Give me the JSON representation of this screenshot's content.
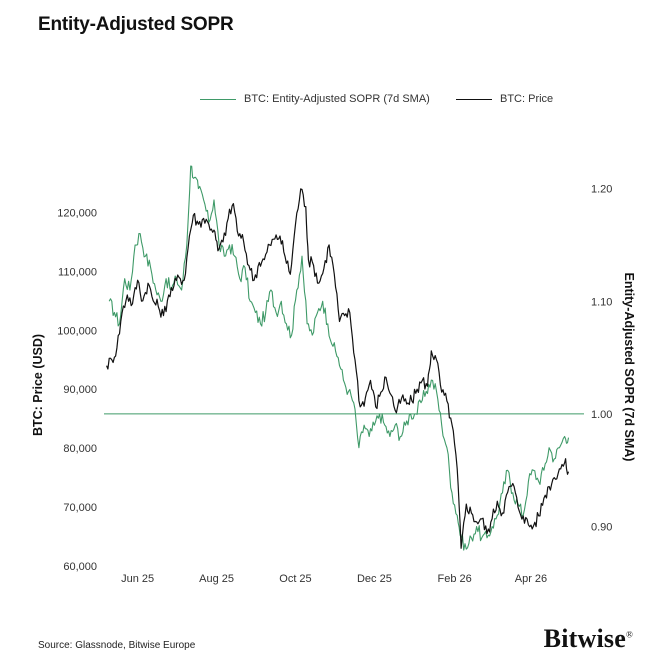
{
  "title": "Entity-Adjusted SOPR",
  "source": "Source: Glassnode, Bitwise Europe",
  "brand": "Bitwise",
  "brand_mark": "®",
  "colors": {
    "sopr": "#3f9a68",
    "price": "#111111",
    "reference": "#3f9a68"
  },
  "chart_data": {
    "type": "line",
    "title": "Entity-Adjusted SOPR",
    "y_left": {
      "label": "BTC: Price (USD)",
      "range": [
        60000,
        125000
      ],
      "ticks": [
        60000,
        70000,
        80000,
        90000,
        100000,
        110000,
        120000
      ],
      "tick_labels": [
        "60,000",
        "70,000",
        "80,000",
        "90,000",
        "100,000",
        "110,000",
        "120,000"
      ]
    },
    "y_right": {
      "label": "Entity-Adjusted SOPR (7d SMA)",
      "range": [
        0.865,
        1.205
      ],
      "ticks": [
        0.9,
        1.0,
        1.1,
        1.2
      ],
      "tick_labels": [
        "0.90",
        "1.00",
        "1.10",
        "1.20"
      ]
    },
    "x_ticks": [
      {
        "date": "2025-06-01",
        "label": "Jun 25"
      },
      {
        "date": "2025-08-01",
        "label": "Aug 25"
      },
      {
        "date": "2025-10-01",
        "label": "Oct 25"
      },
      {
        "date": "2025-12-01",
        "label": "Dec 25"
      },
      {
        "date": "2026-02-01",
        "label": "Feb 26"
      },
      {
        "date": "2026-04-01",
        "label": "Apr 26"
      }
    ],
    "x_range": [
      "2025-05-06",
      "2026-05-12"
    ],
    "reference_line": {
      "axis": "right",
      "value": 1.0
    },
    "series": [
      {
        "name": "BTC: Entity-Adjusted SOPR (7d SMA)",
        "axis": "right",
        "color": "#3f9a68",
        "points": [
          [
            "2025-05-10",
            1.1
          ],
          [
            "2025-05-14",
            1.09
          ],
          [
            "2025-05-18",
            1.08
          ],
          [
            "2025-05-22",
            1.12
          ],
          [
            "2025-05-26",
            1.11
          ],
          [
            "2025-05-30",
            1.15
          ],
          [
            "2025-06-03",
            1.16
          ],
          [
            "2025-06-07",
            1.14
          ],
          [
            "2025-06-11",
            1.13
          ],
          [
            "2025-06-15",
            1.11
          ],
          [
            "2025-06-19",
            1.1
          ],
          [
            "2025-06-23",
            1.12
          ],
          [
            "2025-06-27",
            1.11
          ],
          [
            "2025-07-01",
            1.12
          ],
          [
            "2025-07-05",
            1.11
          ],
          [
            "2025-07-09",
            1.15
          ],
          [
            "2025-07-12",
            1.22
          ],
          [
            "2025-07-15",
            1.21
          ],
          [
            "2025-07-18",
            1.2
          ],
          [
            "2025-07-22",
            1.19
          ],
          [
            "2025-07-26",
            1.17
          ],
          [
            "2025-07-30",
            1.19
          ],
          [
            "2025-08-03",
            1.15
          ],
          [
            "2025-08-07",
            1.14
          ],
          [
            "2025-08-11",
            1.15
          ],
          [
            "2025-08-15",
            1.14
          ],
          [
            "2025-08-19",
            1.12
          ],
          [
            "2025-08-23",
            1.13
          ],
          [
            "2025-08-27",
            1.1
          ],
          [
            "2025-08-31",
            1.09
          ],
          [
            "2025-09-04",
            1.08
          ],
          [
            "2025-09-08",
            1.09
          ],
          [
            "2025-09-12",
            1.11
          ],
          [
            "2025-09-16",
            1.09
          ],
          [
            "2025-09-20",
            1.1
          ],
          [
            "2025-09-24",
            1.08
          ],
          [
            "2025-09-28",
            1.07
          ],
          [
            "2025-10-02",
            1.11
          ],
          [
            "2025-10-06",
            1.14
          ],
          [
            "2025-10-10",
            1.08
          ],
          [
            "2025-10-14",
            1.07
          ],
          [
            "2025-10-18",
            1.09
          ],
          [
            "2025-10-22",
            1.1
          ],
          [
            "2025-10-26",
            1.08
          ],
          [
            "2025-10-30",
            1.06
          ],
          [
            "2025-11-03",
            1.05
          ],
          [
            "2025-11-07",
            1.03
          ],
          [
            "2025-11-11",
            1.02
          ],
          [
            "2025-11-15",
            1.01
          ],
          [
            "2025-11-19",
            0.97
          ],
          [
            "2025-11-23",
            0.99
          ],
          [
            "2025-11-27",
            0.98
          ],
          [
            "2025-12-01",
            0.99
          ],
          [
            "2025-12-05",
            1.0
          ],
          [
            "2025-12-09",
            0.99
          ],
          [
            "2025-12-13",
            0.98
          ],
          [
            "2025-12-17",
            0.99
          ],
          [
            "2025-12-21",
            0.98
          ],
          [
            "2025-12-25",
            0.99
          ],
          [
            "2025-12-29",
            1.0
          ],
          [
            "2026-01-02",
            1.0
          ],
          [
            "2026-01-06",
            1.01
          ],
          [
            "2026-01-10",
            1.02
          ],
          [
            "2026-01-14",
            1.03
          ],
          [
            "2026-01-18",
            1.02
          ],
          [
            "2026-01-22",
            0.99
          ],
          [
            "2026-01-26",
            0.97
          ],
          [
            "2026-01-30",
            0.93
          ],
          [
            "2026-02-03",
            0.91
          ],
          [
            "2026-02-06",
            0.89
          ],
          [
            "2026-02-10",
            0.88
          ],
          [
            "2026-02-14",
            0.89
          ],
          [
            "2026-02-18",
            0.9
          ],
          [
            "2026-02-22",
            0.89
          ],
          [
            "2026-02-26",
            0.89
          ],
          [
            "2026-03-02",
            0.9
          ],
          [
            "2026-03-06",
            0.91
          ],
          [
            "2026-03-10",
            0.93
          ],
          [
            "2026-03-14",
            0.95
          ],
          [
            "2026-03-18",
            0.93
          ],
          [
            "2026-03-22",
            0.92
          ],
          [
            "2026-03-26",
            0.91
          ],
          [
            "2026-03-30",
            0.94
          ],
          [
            "2026-04-03",
            0.95
          ],
          [
            "2026-04-07",
            0.94
          ],
          [
            "2026-04-11",
            0.95
          ],
          [
            "2026-04-15",
            0.97
          ],
          [
            "2026-04-19",
            0.96
          ],
          [
            "2026-04-23",
            0.97
          ],
          [
            "2026-04-27",
            0.98
          ],
          [
            "2026-04-30",
            0.979
          ]
        ]
      },
      {
        "name": "BTC: Price",
        "axis": "left",
        "color": "#111111",
        "points": [
          [
            "2025-05-08",
            94000
          ],
          [
            "2025-05-12",
            95000
          ],
          [
            "2025-05-16",
            97000
          ],
          [
            "2025-05-20",
            103000
          ],
          [
            "2025-05-24",
            106000
          ],
          [
            "2025-05-28",
            104500
          ],
          [
            "2025-06-01",
            108500
          ],
          [
            "2025-06-05",
            105000
          ],
          [
            "2025-06-09",
            108000
          ],
          [
            "2025-06-13",
            105000
          ],
          [
            "2025-06-17",
            104000
          ],
          [
            "2025-06-21",
            102500
          ],
          [
            "2025-06-25",
            106000
          ],
          [
            "2025-06-29",
            107500
          ],
          [
            "2025-07-03",
            109000
          ],
          [
            "2025-07-07",
            108500
          ],
          [
            "2025-07-11",
            116000
          ],
          [
            "2025-07-14",
            119500
          ],
          [
            "2025-07-18",
            118000
          ],
          [
            "2025-07-22",
            119000
          ],
          [
            "2025-07-26",
            118000
          ],
          [
            "2025-07-30",
            117000
          ],
          [
            "2025-08-02",
            113500
          ],
          [
            "2025-08-06",
            115000
          ],
          [
            "2025-08-10",
            119000
          ],
          [
            "2025-08-14",
            121500
          ],
          [
            "2025-08-18",
            116000
          ],
          [
            "2025-08-22",
            115000
          ],
          [
            "2025-08-26",
            111000
          ],
          [
            "2025-08-30",
            108500
          ],
          [
            "2025-09-03",
            111500
          ],
          [
            "2025-09-07",
            112000
          ],
          [
            "2025-09-11",
            114500
          ],
          [
            "2025-09-15",
            115500
          ],
          [
            "2025-09-19",
            116000
          ],
          [
            "2025-09-23",
            112500
          ],
          [
            "2025-09-27",
            109500
          ],
          [
            "2025-10-01",
            118000
          ],
          [
            "2025-10-05",
            124000
          ],
          [
            "2025-10-09",
            121000
          ],
          [
            "2025-10-11",
            112000
          ],
          [
            "2025-10-15",
            111000
          ],
          [
            "2025-10-19",
            108000
          ],
          [
            "2025-10-23",
            110500
          ],
          [
            "2025-10-27",
            114500
          ],
          [
            "2025-10-31",
            109500
          ],
          [
            "2025-11-04",
            101500
          ],
          [
            "2025-11-08",
            102500
          ],
          [
            "2025-11-12",
            103000
          ],
          [
            "2025-11-16",
            95000
          ],
          [
            "2025-11-20",
            87000
          ],
          [
            "2025-11-24",
            88500
          ],
          [
            "2025-11-28",
            91500
          ],
          [
            "2025-12-02",
            87000
          ],
          [
            "2025-12-06",
            89500
          ],
          [
            "2025-12-10",
            92000
          ],
          [
            "2025-12-14",
            89000
          ],
          [
            "2025-12-18",
            86000
          ],
          [
            "2025-12-22",
            88500
          ],
          [
            "2025-12-26",
            87500
          ],
          [
            "2025-12-30",
            88000
          ],
          [
            "2026-01-03",
            90000
          ],
          [
            "2026-01-07",
            91500
          ],
          [
            "2026-01-11",
            90500
          ],
          [
            "2026-01-14",
            96500
          ],
          [
            "2026-01-18",
            95000
          ],
          [
            "2026-01-22",
            89500
          ],
          [
            "2026-01-26",
            88000
          ],
          [
            "2026-01-30",
            84000
          ],
          [
            "2026-02-03",
            76500
          ],
          [
            "2026-02-06",
            63000
          ],
          [
            "2026-02-10",
            70500
          ],
          [
            "2026-02-14",
            69000
          ],
          [
            "2026-02-18",
            67500
          ],
          [
            "2026-02-22",
            68000
          ],
          [
            "2026-02-26",
            65500
          ],
          [
            "2026-03-02",
            68000
          ],
          [
            "2026-03-06",
            71000
          ],
          [
            "2026-03-10",
            69000
          ],
          [
            "2026-03-14",
            72500
          ],
          [
            "2026-03-18",
            74000
          ],
          [
            "2026-03-22",
            70000
          ],
          [
            "2026-03-26",
            68500
          ],
          [
            "2026-03-30",
            67000
          ],
          [
            "2026-04-03",
            66800
          ],
          [
            "2026-04-07",
            68500
          ],
          [
            "2026-04-11",
            71500
          ],
          [
            "2026-04-15",
            73500
          ],
          [
            "2026-04-19",
            75000
          ],
          [
            "2026-04-23",
            76500
          ],
          [
            "2026-04-27",
            77500
          ],
          [
            "2026-04-30",
            76000
          ]
        ]
      }
    ]
  }
}
